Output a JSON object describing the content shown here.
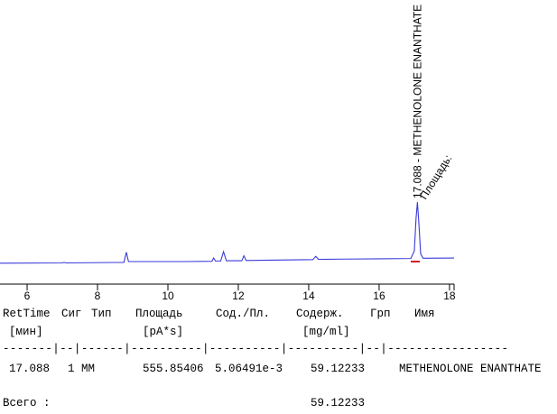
{
  "chart_data": {
    "type": "line",
    "x": [
      5.23,
      7.0,
      7.05,
      7.1,
      8.75,
      8.82,
      8.88,
      10.5,
      11.25,
      11.3,
      11.35,
      11.5,
      11.58,
      11.66,
      12.1,
      12.16,
      12.22,
      13.4,
      14.12,
      14.2,
      14.28,
      15.0,
      16.0,
      16.9,
      17.0,
      17.05,
      17.088,
      17.13,
      17.18,
      17.25,
      18.13
    ],
    "series": [
      {
        "color": "#3a3ad8",
        "values": [
          7.6,
          7.7,
          7.9,
          7.7,
          7.9,
          11.6,
          8.2,
          8.2,
          8.3,
          9.5,
          8.4,
          8.4,
          11.8,
          8.5,
          8.5,
          10.3,
          8.6,
          8.8,
          8.9,
          10.1,
          9.0,
          9.1,
          9.2,
          9.3,
          12,
          24,
          29.8,
          22,
          11,
          9.4,
          9.5
        ]
      }
    ],
    "xlim": [
      5.23,
      18.13
    ],
    "xticks": [
      6,
      8,
      10,
      12,
      14,
      16,
      18
    ],
    "ylim": [
      0,
      100
    ],
    "annotations": [
      {
        "x": 17.088,
        "text": "17.088 - METHENOLONE ENANTHATE"
      },
      {
        "x": 17.088,
        "text": "Площадь:"
      }
    ]
  },
  "report": {
    "headers": [
      "RetTime",
      "Сиг",
      "Тип",
      "Площадь",
      "Сод./Пл.",
      "Содерж.",
      "Грп",
      "Имя"
    ],
    "units": [
      "[мин]",
      "[pA*s]",
      "[mg/ml]"
    ],
    "separator": "-------|--|------|----------|----------|----------|--|-----------------",
    "rows": [
      [
        "17.088",
        "1",
        "MM",
        "555.85406",
        "5.06491e-3",
        "59.12233",
        "METHENOLONE ENANTHATE"
      ]
    ],
    "total_label": "Всего :",
    "total": "59.12233"
  }
}
